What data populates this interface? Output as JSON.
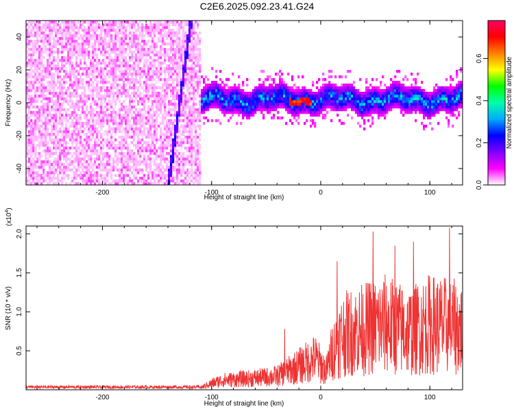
{
  "title": "C2E6.2025.092.23.41.G24",
  "chart_data": [
    {
      "type": "heatmap",
      "xlabel": "Height of straight line (km)",
      "ylabel": "Frequency (Hz)",
      "xlim": [
        -270,
        130
      ],
      "ylim": [
        -50,
        50
      ],
      "xticks": [
        -200,
        -100,
        0,
        100
      ],
      "yticks": [
        -40,
        -20,
        0,
        20,
        40
      ],
      "grid": false,
      "colorbar": {
        "label": "Normalized spectral amplitude",
        "range": [
          0.0,
          0.78
        ],
        "ticks": [
          0.0,
          0.2,
          0.4,
          0.6
        ],
        "colormap": [
          "#ffffff",
          "#ff00ff",
          "#8000ff",
          "#0000ff",
          "#00aaff",
          "#00ffaa",
          "#00ff00",
          "#ffff00",
          "#ff8000",
          "#ff0000",
          "#ff0066"
        ]
      },
      "features": {
        "noise_region_x": [
          -270,
          -110
        ],
        "noise_amplitude": 0.05,
        "streak": {
          "x": [
            -140,
            -120
          ],
          "y": [
            -48,
            48
          ],
          "amplitude": 0.2
        },
        "band_center_hz": 1,
        "band_halfwidth_hz": 8,
        "band_peak_amplitude": 0.75,
        "band_peak_x": [
          -30,
          -10
        ]
      }
    },
    {
      "type": "line",
      "xlabel": "Height of straight line (km)",
      "ylabel": "SNR (10 * v/v)",
      "y_multiplier": "(x10",
      "y_multiplier_exp": "4",
      "y_multiplier_close": ")",
      "xlim": [
        -270,
        130
      ],
      "ylim": [
        0,
        21000
      ],
      "xticks": [
        -200,
        -100,
        0,
        100
      ],
      "yticks": [
        5000,
        10000,
        15000,
        20000
      ],
      "ytick_labels": [
        "0.5",
        "1.0",
        "1.5",
        "2.0"
      ],
      "grid": false,
      "color": "#ee3333",
      "envelope": [
        {
          "x": -270,
          "y": 400
        },
        {
          "x": -110,
          "y": 400
        },
        {
          "x": -100,
          "y": 1200
        },
        {
          "x": -90,
          "y": 1800
        },
        {
          "x": -60,
          "y": 2200
        },
        {
          "x": -40,
          "y": 2600
        },
        {
          "x": -20,
          "y": 4500
        },
        {
          "x": -5,
          "y": 6000
        },
        {
          "x": 5,
          "y": 3500
        },
        {
          "x": 10,
          "y": 7000
        },
        {
          "x": 20,
          "y": 10500
        },
        {
          "x": 40,
          "y": 11500
        },
        {
          "x": 60,
          "y": 12500
        },
        {
          "x": 80,
          "y": 11000
        },
        {
          "x": 100,
          "y": 12500
        },
        {
          "x": 120,
          "y": 12000
        },
        {
          "x": 130,
          "y": 11500
        }
      ],
      "peaks": [
        {
          "x": -33,
          "y": 7800
        },
        {
          "x": 15,
          "y": 16500
        },
        {
          "x": 48,
          "y": 20300
        },
        {
          "x": 68,
          "y": 18500
        },
        {
          "x": 85,
          "y": 19000
        },
        {
          "x": 118,
          "y": 20800
        }
      ]
    }
  ]
}
